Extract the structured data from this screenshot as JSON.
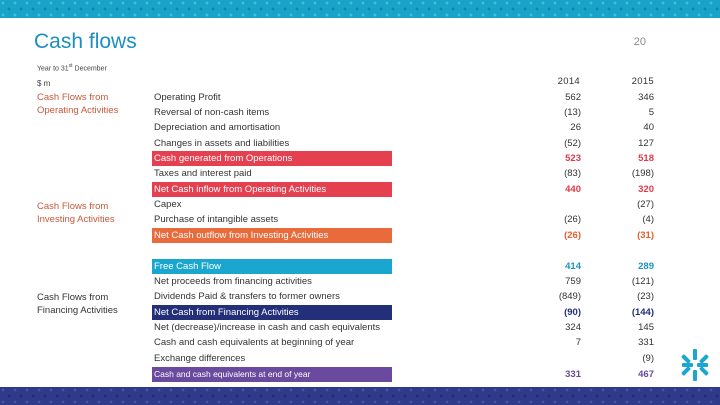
{
  "title": "Cash flows",
  "page_number": "20",
  "subtitle_prefix": "Year to 31",
  "subtitle_sup": "st",
  "subtitle_suffix": " December",
  "unit": "$ m",
  "years": {
    "y1": "2014",
    "y2": "2015"
  },
  "sections": {
    "operating": "Cash Flows from Operating Activities",
    "investing": "Cash Flows from Investing Activities",
    "financing": "Cash Flows from Financing Activities"
  },
  "rows": [
    {
      "label": "Operating Profit",
      "v2014": "562",
      "v2015": "346"
    },
    {
      "label": "Reversal of non-cash items",
      "v2014": "(13)",
      "v2015": "5"
    },
    {
      "label": "Depreciation and amortisation",
      "v2014": "26",
      "v2015": "40"
    },
    {
      "label": "Changes in assets and liabilities",
      "v2014": "(52)",
      "v2015": "127"
    },
    {
      "label": "Cash generated from Operations",
      "v2014": "523",
      "v2015": "518"
    },
    {
      "label": "Taxes and interest paid",
      "v2014": "(83)",
      "v2015": "(198)"
    },
    {
      "label": "Net Cash inflow from Operating Activities",
      "v2014": "440",
      "v2015": "320"
    },
    {
      "label": "Capex",
      "v2014": "",
      "v2015": "(27)"
    },
    {
      "label": "Purchase of intangible assets",
      "v2014": "(26)",
      "v2015": "(4)"
    },
    {
      "label": "Net Cash outflow from Investing Activities",
      "v2014": "(26)",
      "v2015": "(31)"
    },
    {
      "label": "Free Cash Flow",
      "v2014": "414",
      "v2015": "289"
    },
    {
      "label": "Net proceeds from financing activities",
      "v2014": "759",
      "v2015": "(121)"
    },
    {
      "label": "Dividends Paid & transfers to former owners",
      "v2014": "(849)",
      "v2015": "(23)"
    },
    {
      "label": "Net Cash from Financing Activities",
      "v2014": "(90)",
      "v2015": "(144)"
    },
    {
      "label": "Net (decrease)/increase in cash and cash equivalents",
      "v2014": "324",
      "v2015": "145"
    },
    {
      "label": "Cash and cash equivalents at beginning of year",
      "v2014": "7",
      "v2015": "331"
    },
    {
      "label": "Exchange differences",
      "v2014": "",
      "v2015": "(9)"
    },
    {
      "label": "Cash and cash equivalents at end of year",
      "v2014": "331",
      "v2015": "467"
    }
  ],
  "colors": {
    "operating": "#e4404f",
    "investing": "#e96a3b",
    "free_cash": "#1aa6cf",
    "financing": "#242f7a",
    "ending": "#6a4a9e"
  }
}
